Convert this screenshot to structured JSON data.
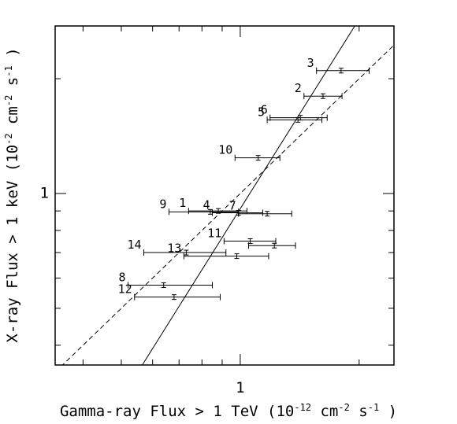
{
  "chart_data": {
    "type": "scatter",
    "title": "",
    "xlabel": "Gamma-ray  Flux > 1 TeV (10^-12 cm^-2 s^-1 )",
    "ylabel": "X-ray Flux > 1 keV (10^-2 cm^-2 s^-1 )",
    "x_scale": "log",
    "y_scale": "log",
    "xlim": [
      0.34,
      2.45
    ],
    "ylim": [
      0.355,
      2.75
    ],
    "x_ticks": [
      {
        "value": 1,
        "label": "1"
      }
    ],
    "y_ticks": [
      {
        "value": 1,
        "label": "1"
      }
    ],
    "grid": false,
    "legend": "none",
    "points": [
      {
        "label": "1",
        "x": 0.88,
        "y": 0.9,
        "xerr": [
          0.74,
          1.04
        ]
      },
      {
        "label": "2",
        "x": 1.62,
        "y": 1.8,
        "xerr": [
          1.45,
          1.81
        ]
      },
      {
        "label": "3",
        "x": 1.8,
        "y": 2.1,
        "xerr": [
          1.56,
          2.12
        ]
      },
      {
        "label": "4",
        "x": 0.99,
        "y": 0.89,
        "xerr": [
          0.85,
          1.14
        ]
      },
      {
        "label": "5",
        "x": 1.4,
        "y": 1.56,
        "xerr": [
          1.17,
          1.61
        ]
      },
      {
        "label": "6",
        "x": 1.42,
        "y": 1.58,
        "xerr": [
          1.19,
          1.66
        ]
      },
      {
        "label": "7",
        "x": 1.17,
        "y": 0.885,
        "xerr": [
          0.99,
          1.35
        ]
      },
      {
        "label": "8",
        "x": 0.64,
        "y": 0.575,
        "xerr": [
          0.52,
          0.85
        ]
      },
      {
        "label": "9",
        "x": 0.84,
        "y": 0.895,
        "xerr": [
          0.66,
          0.99
        ]
      },
      {
        "label": "10",
        "x": 1.11,
        "y": 1.24,
        "xerr": [
          0.97,
          1.26
        ]
      },
      {
        "label": "11",
        "x": 1.06,
        "y": 0.75,
        "xerr": [
          0.91,
          1.23
        ]
      },
      {
        "label": "12",
        "x": 0.68,
        "y": 0.535,
        "xerr": [
          0.54,
          0.89
        ]
      },
      {
        "label": "13",
        "x": 0.98,
        "y": 0.685,
        "xerr": [
          0.72,
          1.18
        ]
      },
      {
        "label": "14",
        "x": 0.73,
        "y": 0.7,
        "xerr": [
          0.57,
          0.92
        ]
      },
      {
        "label": "",
        "x": 1.22,
        "y": 0.73,
        "xerr": [
          1.05,
          1.38
        ]
      }
    ],
    "lines": [
      {
        "style": "dashed",
        "x": [
          0.34,
          2.45
        ],
        "y": [
          0.34,
          2.45
        ]
      },
      {
        "style": "solid",
        "x": [
          0.565,
          1.95
        ],
        "y": [
          0.355,
          2.75
        ]
      }
    ]
  }
}
